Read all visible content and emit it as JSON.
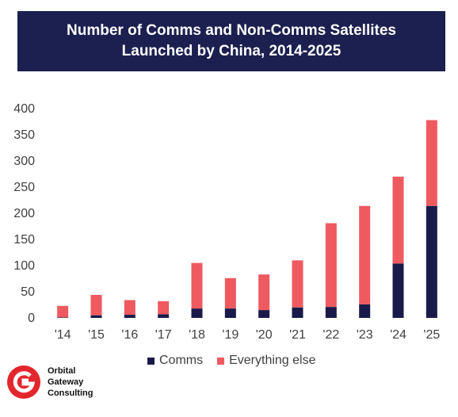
{
  "title": {
    "line1": "Number of Comms and Non-Comms Satellites",
    "line2": "Launched by China, 2014-2025"
  },
  "colors": {
    "banner": "#1b2050",
    "comms": "#1a1a4a",
    "everything_else": "#ee5a5f",
    "logo_red": "#e3262d"
  },
  "chart_data": {
    "type": "bar",
    "stacked": true,
    "categories": [
      "'14",
      "'15",
      "'16",
      "'17",
      "'18",
      "'19",
      "'20",
      "'21",
      "'22",
      "'23",
      "'24",
      "'25"
    ],
    "series": [
      {
        "name": "Comms",
        "values": [
          1,
          5,
          6,
          7,
          18,
          18,
          15,
          20,
          21,
          26,
          104,
          214
        ]
      },
      {
        "name": "Everything else",
        "values": [
          22,
          39,
          28,
          25,
          87,
          58,
          68,
          90,
          160,
          188,
          166,
          164
        ]
      }
    ],
    "ylim": [
      0,
      400
    ],
    "yticks": [
      0,
      50,
      100,
      150,
      200,
      250,
      300,
      350,
      400
    ],
    "grid": false,
    "legend_position": "bottom"
  },
  "legend": {
    "comms": "Comms",
    "everything_else": "Everything else"
  },
  "logo": {
    "line1": "Orbital",
    "line2": "Gateway",
    "line3": "Consulting"
  }
}
